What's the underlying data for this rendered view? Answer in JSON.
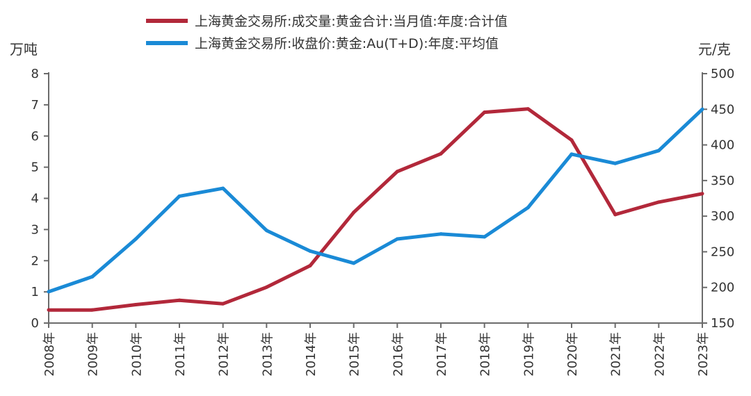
{
  "chart_data": {
    "type": "line",
    "categories": [
      "2008年",
      "2009年",
      "2010年",
      "2011年",
      "2012年",
      "2013年",
      "2014年",
      "2015年",
      "2016年",
      "2017年",
      "2018年",
      "2019年",
      "2020年",
      "2021年",
      "2022年",
      "2023年"
    ],
    "series": [
      {
        "name": "上海黄金交易所:成交量:黄金合计:当月值:年度:合计值",
        "axis": "left",
        "color": "#b2283a",
        "values": [
          0.42,
          0.42,
          0.59,
          0.73,
          0.62,
          1.15,
          1.84,
          3.55,
          4.86,
          5.43,
          6.76,
          6.87,
          5.87,
          3.48,
          3.88,
          4.15
        ]
      },
      {
        "name": "上海黄金交易所:收盘价:黄金:Au(T+D):年度:平均值",
        "axis": "right",
        "color": "#1a8ad6",
        "values": [
          194,
          215,
          268,
          328,
          339,
          280,
          251,
          234,
          268,
          275,
          271,
          312,
          387,
          374,
          392,
          450
        ]
      }
    ],
    "left_axis": {
      "unit": "万吨",
      "min": 0,
      "max": 8,
      "ticks": [
        0,
        1,
        2,
        3,
        4,
        5,
        6,
        7,
        8
      ]
    },
    "right_axis": {
      "unit": "元/克",
      "min": 150,
      "max": 500,
      "ticks": [
        150,
        200,
        250,
        300,
        350,
        400,
        450,
        500
      ]
    },
    "legend_position": "top"
  }
}
